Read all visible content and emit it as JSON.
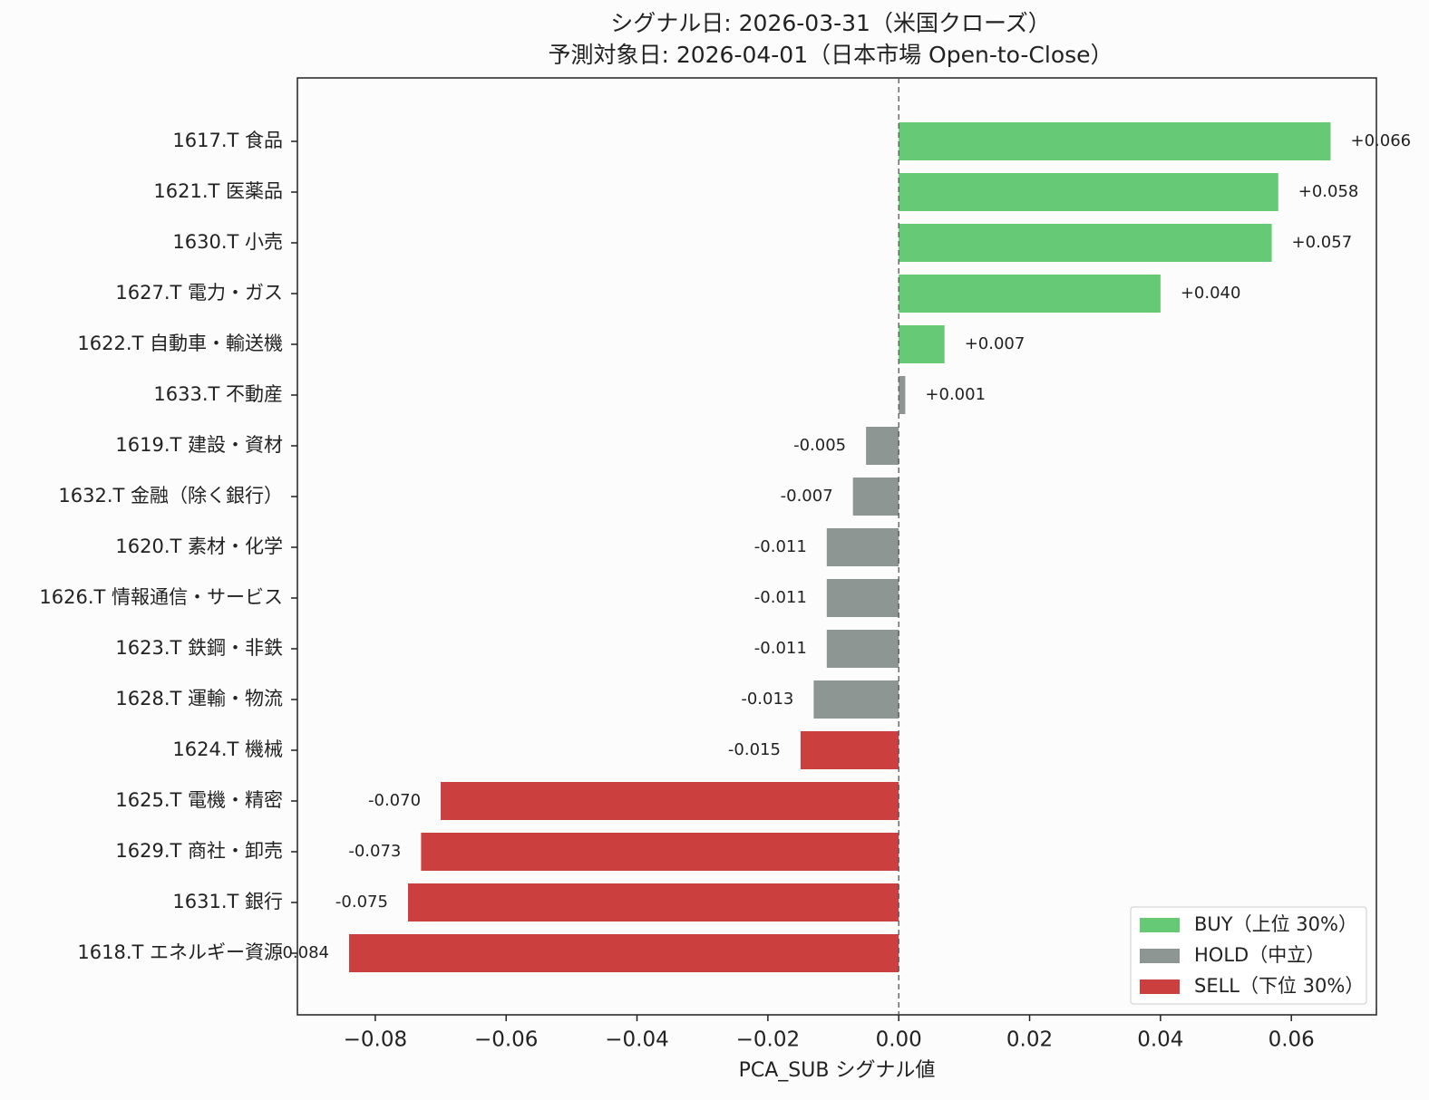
{
  "chart_data": {
    "type": "barh",
    "title": "シグナル日: 2026-03-31（米国クローズ）",
    "subtitle": "予測対象日: 2026-04-01（日本市場 Open-to-Close）",
    "xlabel": "PCA_SUB シグナル値",
    "categories": [
      "1617.T  食品",
      "1621.T  医薬品",
      "1630.T  小売",
      "1627.T  電力・ガス",
      "1622.T  自動車・輸送機",
      "1633.T  不動産",
      "1619.T  建設・資材",
      "1632.T  金融（除く銀行）",
      "1620.T  素材・化学",
      "1626.T  情報通信・サービス",
      "1623.T  鉄鋼・非鉄",
      "1628.T  運輸・物流",
      "1624.T  機械",
      "1625.T  電機・精密",
      "1629.T  商社・卸売",
      "1631.T  銀行",
      "1618.T  エネルギー資源"
    ],
    "values": [
      0.066,
      0.058,
      0.057,
      0.04,
      0.007,
      0.001,
      -0.005,
      -0.007,
      -0.011,
      -0.011,
      -0.011,
      -0.013,
      -0.015,
      -0.07,
      -0.073,
      -0.075,
      -0.084
    ],
    "value_labels": [
      "+0.066",
      "+0.058",
      "+0.057",
      "+0.040",
      "+0.007",
      "+0.001",
      "-0.005",
      "-0.007",
      "-0.011",
      "-0.011",
      "-0.011",
      "-0.013",
      "-0.015",
      "-0.070",
      "-0.073",
      "-0.075",
      "-0.084"
    ],
    "colors": [
      "#66c975",
      "#66c975",
      "#66c975",
      "#66c975",
      "#66c975",
      "#8e9694",
      "#8e9694",
      "#8e9694",
      "#8e9694",
      "#8e9694",
      "#8e9694",
      "#8e9694",
      "#cc3f3f",
      "#cc3f3f",
      "#cc3f3f",
      "#cc3f3f",
      "#cc3f3f"
    ],
    "legend": [
      {
        "name": "BUY（上位 30%）",
        "color": "#66c975"
      },
      {
        "name": "HOLD（中立）",
        "color": "#8e9694"
      },
      {
        "name": "SELL（下位 30%）",
        "color": "#cc3f3f"
      }
    ],
    "legend_position": "lower right",
    "xlim": [
      -0.0919,
      0.073
    ],
    "xticks": [
      {
        "value": -0.08,
        "label": "−0.08"
      },
      {
        "value": -0.06,
        "label": "−0.06"
      },
      {
        "value": -0.04,
        "label": "−0.04"
      },
      {
        "value": -0.02,
        "label": "−0.02"
      },
      {
        "value": 0,
        "label": "0.00"
      },
      {
        "value": 0.02,
        "label": "0.02"
      },
      {
        "value": 0.04,
        "label": "0.04"
      },
      {
        "value": 0.06,
        "label": "0.06"
      }
    ]
  }
}
